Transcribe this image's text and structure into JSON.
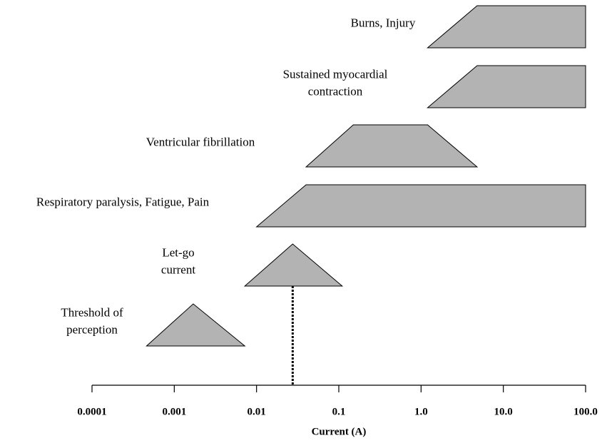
{
  "chart_data": {
    "type": "range",
    "x_label": "Current (A)",
    "xscale": "log",
    "xlim": [
      0.0001,
      100
    ],
    "xticks": [
      0.0001,
      0.001,
      0.01,
      0.1,
      {
        "value": 1,
        "label": "1.0"
      },
      {
        "value": 10,
        "label": "10.0"
      },
      {
        "value": 100,
        "label": "100.0"
      }
    ],
    "color": "#b3b3b3",
    "ranges": [
      {
        "label_lines": [
          "Burns, Injury"
        ],
        "points": [
          1.2,
          4.8,
          100,
          100
        ]
      },
      {
        "label_lines": [
          "Sustained myocardial",
          "contraction"
        ],
        "points": [
          1.2,
          4.8,
          100,
          100
        ]
      },
      {
        "label_lines": [
          "Ventricular fibrillation"
        ],
        "points": [
          0.04,
          0.15,
          1.2,
          4.8
        ]
      },
      {
        "label_lines": [
          "Respiratory paralysis, Fatigue, Pain"
        ],
        "points": [
          0.01,
          0.04,
          100,
          100
        ]
      },
      {
        "label_lines": [
          "Let-go",
          "current"
        ],
        "points": [
          0.0072,
          0.0275,
          0.0275,
          0.11
        ]
      },
      {
        "label_lines": [
          "Threshold of",
          "perception"
        ],
        "points": [
          0.00046,
          0.0017,
          0.0017,
          0.0072
        ]
      }
    ],
    "marker_x": 0.0275
  }
}
